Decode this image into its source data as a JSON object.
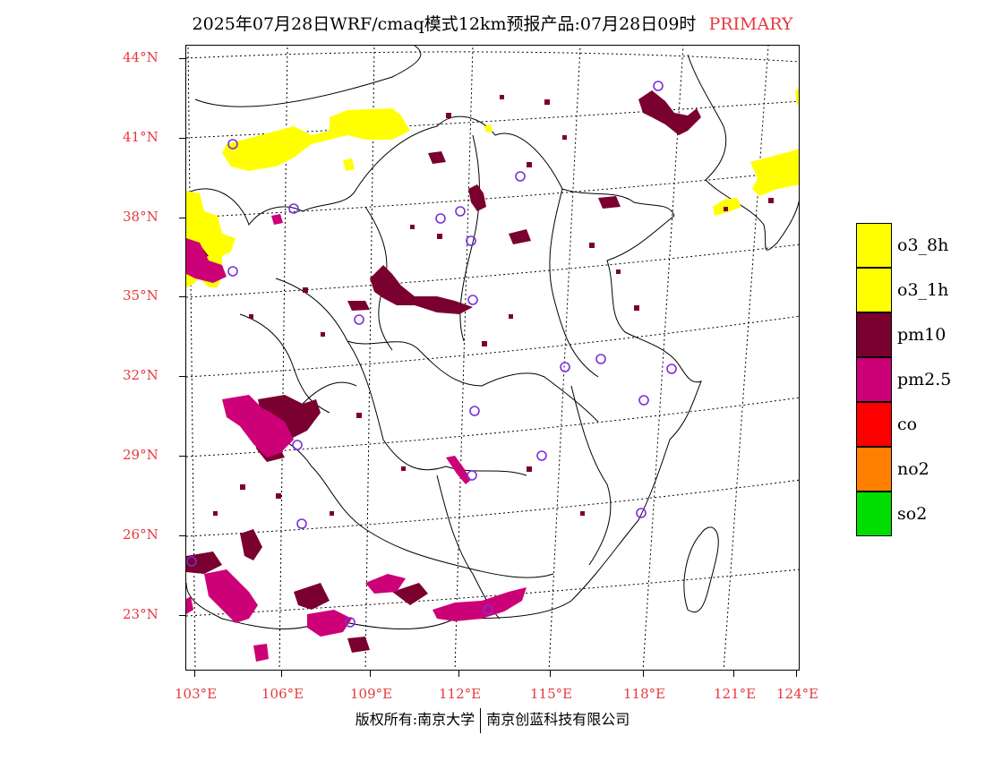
{
  "title": {
    "main": "2025年07月28日WRF/cmaq模式12km预报产品:07月28日09时",
    "tag": "PRIMARY",
    "tag_color": "#e8383d"
  },
  "axes": {
    "lat_labels": [
      "44°N",
      "41°N",
      "38°N",
      "35°N",
      "32°N",
      "29°N",
      "26°N",
      "23°N"
    ],
    "lon_labels": [
      "103°E",
      "106°E",
      "109°E",
      "112°E",
      "115°E",
      "118°E",
      "121°E",
      "124°E"
    ],
    "label_color": "#e8383d"
  },
  "legend": [
    {
      "label": "o3_8h",
      "color": "#ffff00"
    },
    {
      "label": "o3_1h",
      "color": "#ffff00"
    },
    {
      "label": "pm10",
      "color": "#7a0030"
    },
    {
      "label": "pm2.5",
      "color": "#cc0077"
    },
    {
      "label": "co",
      "color": "#ff0000"
    },
    {
      "label": "no2",
      "color": "#ff7f00"
    },
    {
      "label": "so2",
      "color": "#00dd00"
    }
  ],
  "footer": {
    "left": "版权所有:南京大学",
    "right": "南京创蓝科技有限公司"
  },
  "marker_color": "#7b2fd6"
}
